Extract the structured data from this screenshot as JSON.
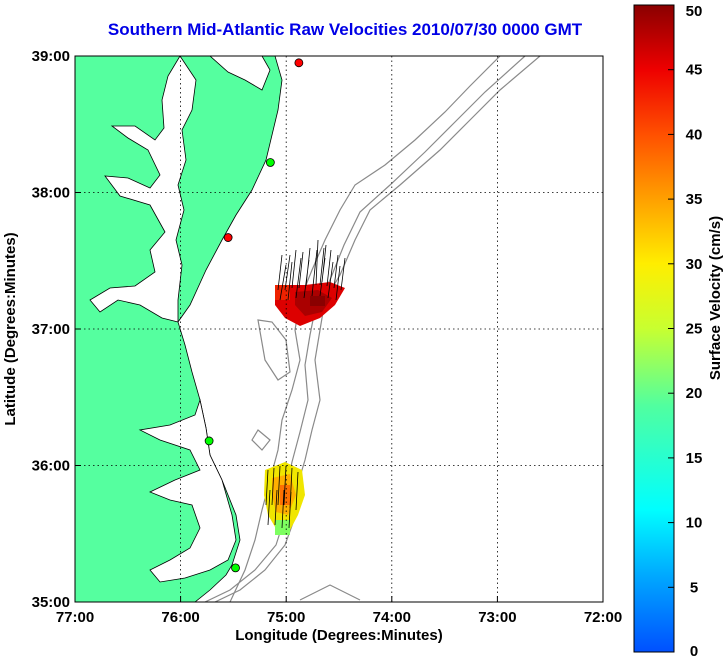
{
  "title": "Southern Mid-Atlantic Raw Velocities 2010/07/30 0000 GMT",
  "chart_data": {
    "type": "map",
    "xlabel": "Longitude (Degrees:Minutes)",
    "ylabel": "Latitude (Degrees:Minutes)",
    "xlim": [
      -77,
      -72
    ],
    "ylim": [
      35,
      39
    ],
    "x_ticks": [
      {
        "value": -77,
        "label": "77:00"
      },
      {
        "value": -76,
        "label": "76:00"
      },
      {
        "value": -75,
        "label": "75:00"
      },
      {
        "value": -74,
        "label": "74:00"
      },
      {
        "value": -73,
        "label": "73:00"
      },
      {
        "value": -72,
        "label": "72:00"
      }
    ],
    "y_ticks": [
      {
        "value": 35,
        "label": "35:00"
      },
      {
        "value": 36,
        "label": "36:00"
      },
      {
        "value": 37,
        "label": "37:00"
      },
      {
        "value": 38,
        "label": "38:00"
      },
      {
        "value": 39,
        "label": "39:00"
      }
    ],
    "grid": "dotted",
    "colorbar": {
      "label": "Surface Velocity (cm/s)",
      "min": 0,
      "max": 50,
      "ticks": [
        0,
        5,
        10,
        15,
        20,
        25,
        30,
        35,
        40,
        45,
        50
      ],
      "colormap": "jet"
    },
    "stations": [
      {
        "lon": -74.88,
        "lat": 38.95,
        "color": "#ff0000"
      },
      {
        "lon": -75.15,
        "lat": 38.22,
        "color": "#00ff00"
      },
      {
        "lon": -75.55,
        "lat": 37.67,
        "color": "#ff0000"
      },
      {
        "lon": -75.73,
        "lat": 36.18,
        "color": "#00ff00"
      },
      {
        "lon": -75.48,
        "lat": 35.25,
        "color": "#00ff00"
      }
    ],
    "velocity_clusters": [
      {
        "name": "northern",
        "lon_range": [
          -75.1,
          -74.55
        ],
        "lat_range": [
          37.0,
          37.3
        ],
        "speed_cm_s": 42
      },
      {
        "name": "southern",
        "lon_range": [
          -75.2,
          -74.85
        ],
        "lat_range": [
          35.5,
          35.9
        ],
        "speed_cm_s": 25
      }
    ]
  }
}
